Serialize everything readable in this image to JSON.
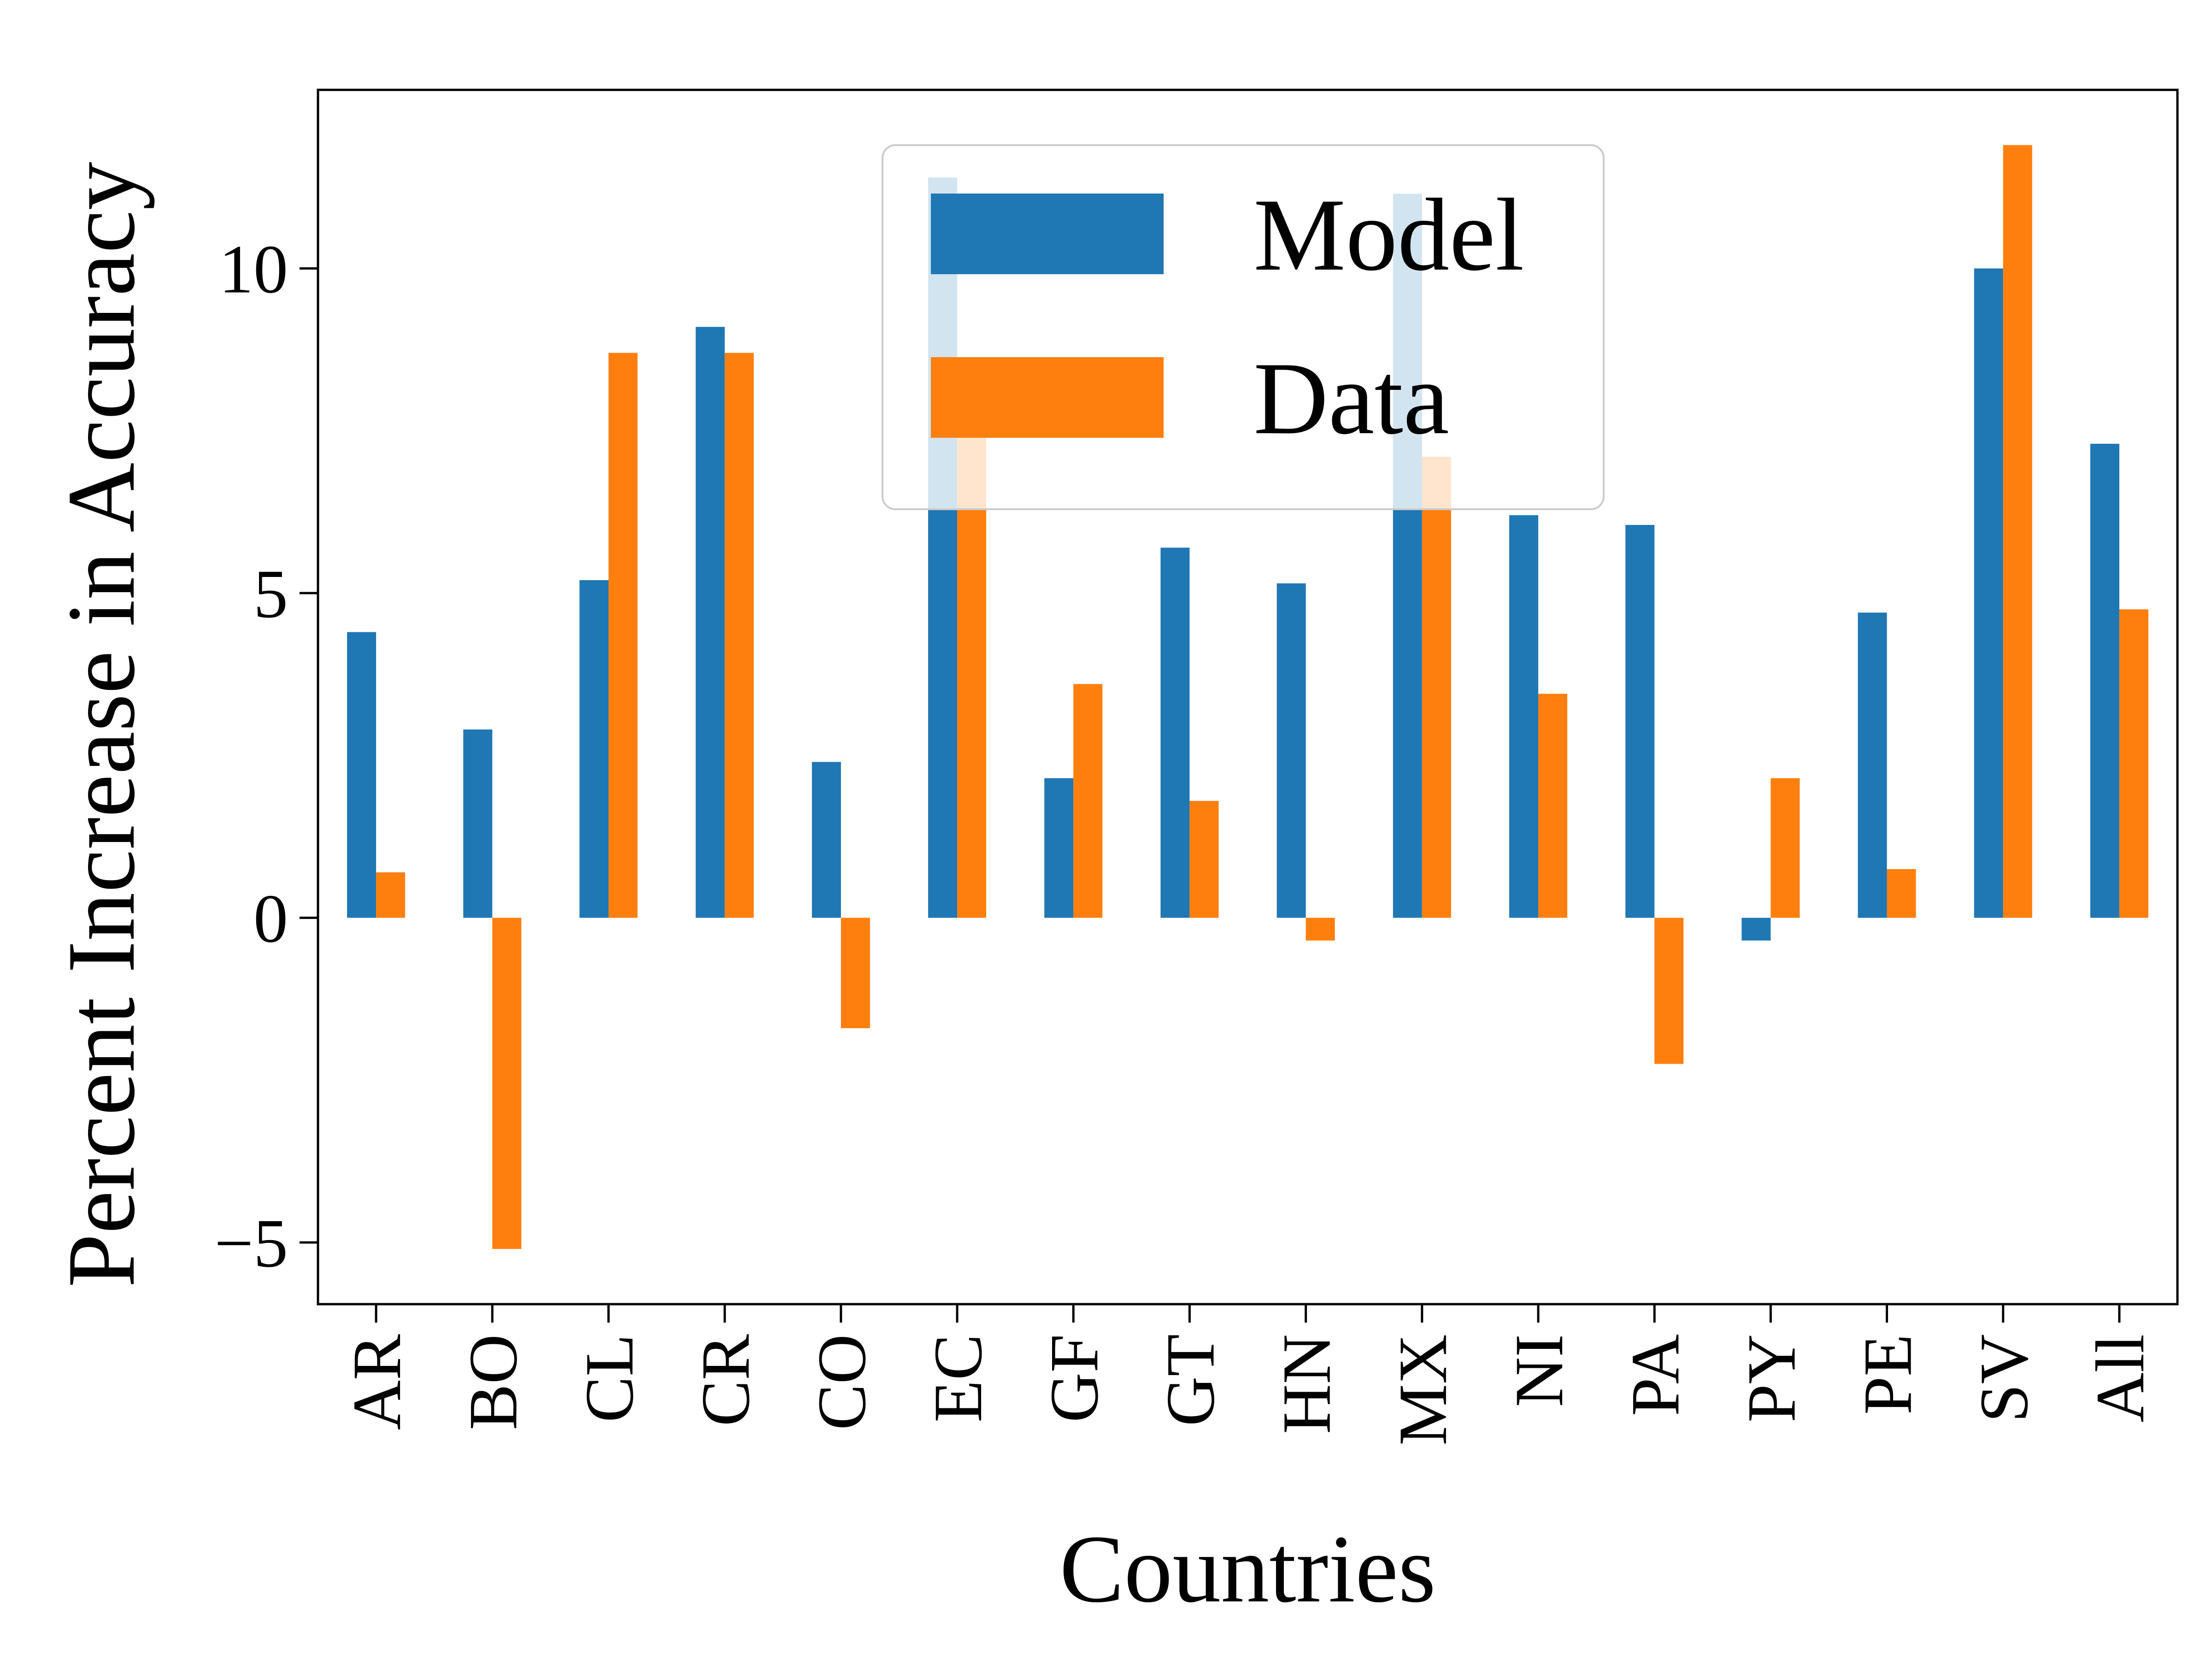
{
  "chart_data": {
    "type": "bar",
    "title": "",
    "xlabel": "Countries",
    "ylabel": "Percent Increase in Accuracy",
    "categories": [
      "AR",
      "BO",
      "CL",
      "CR",
      "CO",
      "EC",
      "GF",
      "GT",
      "HN",
      "MX",
      "NI",
      "PA",
      "PY",
      "PE",
      "SV",
      "All"
    ],
    "series": [
      {
        "name": "Model",
        "color": "#1f77b4",
        "values": [
          4.4,
          2.9,
          5.2,
          9.1,
          2.4,
          11.4,
          2.15,
          5.7,
          5.15,
          11.15,
          6.2,
          6.05,
          -0.35,
          4.7,
          10.0,
          7.3
        ]
      },
      {
        "name": "Data",
        "color": "#ff7f0e",
        "values": [
          0.7,
          -5.1,
          8.7,
          8.7,
          -1.7,
          7.4,
          3.6,
          1.8,
          -0.35,
          7.1,
          3.45,
          -2.25,
          2.15,
          0.75,
          11.9,
          4.75
        ]
      }
    ],
    "ylim": [
      -5.95,
      12.75
    ],
    "yticks": [
      {
        "value": -5,
        "label": "−5"
      },
      {
        "value": 0,
        "label": "0"
      },
      {
        "value": 5,
        "label": "5"
      },
      {
        "value": 10,
        "label": "10"
      }
    ],
    "legend": {
      "position": "upper-center",
      "frame": true
    },
    "grid": false
  }
}
